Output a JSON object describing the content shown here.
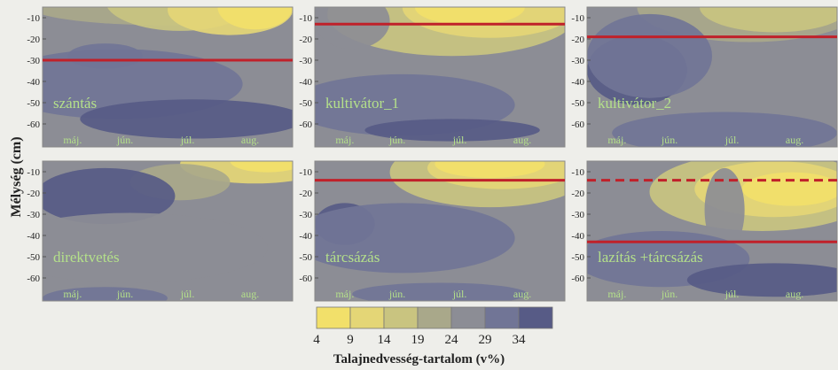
{
  "chart_data": [
    {
      "type": "heatmap",
      "label": "szántás",
      "months": [
        "máj.",
        "jún.",
        "júl.",
        "aug."
      ],
      "yticks": [
        "-10",
        "-20",
        "-30",
        "-40",
        "-50",
        "-60"
      ],
      "depth_lines": [
        {
          "depth": -30,
          "style": "solid"
        }
      ]
    },
    {
      "type": "heatmap",
      "label": "kultivátor_1",
      "months": [
        "máj.",
        "jún.",
        "júl.",
        "aug."
      ],
      "yticks": [
        "-10",
        "-20",
        "-30",
        "-40",
        "-50",
        "-60"
      ],
      "depth_lines": [
        {
          "depth": -13,
          "style": "solid"
        }
      ]
    },
    {
      "type": "heatmap",
      "label": "kultivátor_2",
      "months": [
        "máj.",
        "jún.",
        "júl.",
        "aug."
      ],
      "yticks": [
        "-10",
        "-20",
        "-30",
        "-40",
        "-50",
        "-60"
      ],
      "depth_lines": [
        {
          "depth": -19,
          "style": "solid"
        }
      ]
    },
    {
      "type": "heatmap",
      "label": "direktvetés",
      "months": [
        "máj.",
        "jún.",
        "júl.",
        "aug."
      ],
      "yticks": [
        "-10",
        "-20",
        "-30",
        "-40",
        "-50",
        "-60"
      ],
      "depth_lines": []
    },
    {
      "type": "heatmap",
      "label": "tárcsázás",
      "months": [
        "máj.",
        "jún.",
        "júl.",
        "aug."
      ],
      "yticks": [
        "-10",
        "-20",
        "-30",
        "-40",
        "-50",
        "-60"
      ],
      "depth_lines": [
        {
          "depth": -14,
          "style": "solid"
        }
      ]
    },
    {
      "type": "heatmap",
      "label": "lazítás +tárcsázás",
      "months": [
        "máj.",
        "jún.",
        "júl.",
        "aug."
      ],
      "yticks": [
        "-10",
        "-20",
        "-30",
        "-40",
        "-50",
        "-60"
      ],
      "depth_lines": [
        {
          "depth": -14,
          "style": "dashed"
        },
        {
          "depth": -43,
          "style": "solid"
        }
      ]
    }
  ],
  "y_axis_title": "Mélység (cm)",
  "colorbar": {
    "title": "Talajnedvesség-tartalom (v%)",
    "ticks": [
      "4",
      "9",
      "14",
      "19",
      "24",
      "29",
      "34"
    ],
    "colors": [
      "#f2e06a",
      "#e4d676",
      "#c9c480",
      "#a9a88a",
      "#8c8d95",
      "#717596",
      "#575b86"
    ]
  },
  "line_color": "#c0212a"
}
